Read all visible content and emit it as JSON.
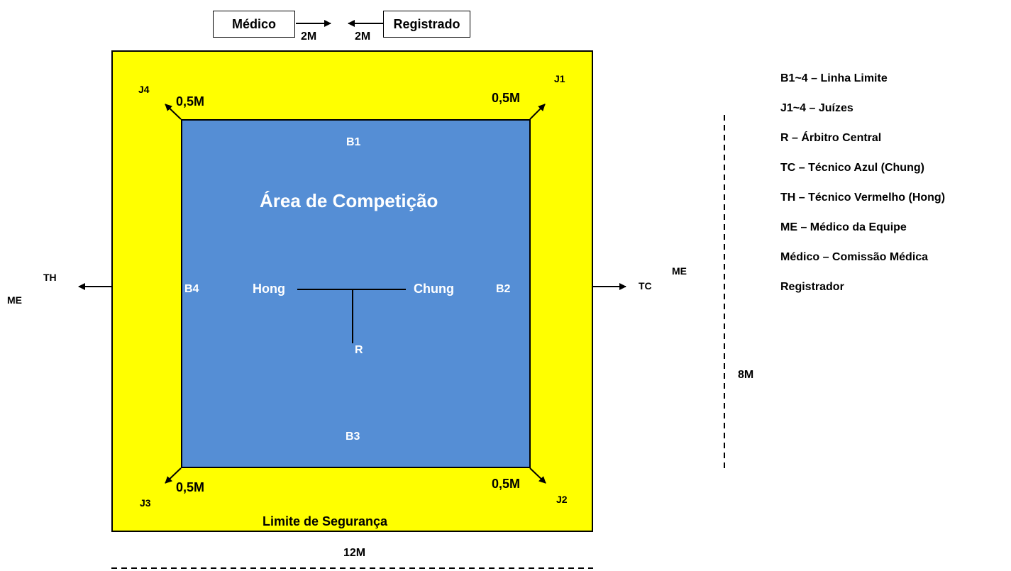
{
  "top": {
    "medico_label": "Médico",
    "registrado_label": "Registrado",
    "medico_distance": "2M",
    "registrado_distance": "2M"
  },
  "corners": {
    "j1": "J1",
    "j2": "J2",
    "j3": "J3",
    "j4": "J4",
    "d_top_left": "0,5M",
    "d_top_right": "0,5M",
    "d_bottom_left": "0,5M",
    "d_bottom_right": "0,5M"
  },
  "arena": {
    "title": "Área de Competição",
    "b1": "B1",
    "b2": "B2",
    "b3": "B3",
    "b4": "B4",
    "hong": "Hong",
    "chung": "Chung",
    "referee": "R"
  },
  "sides": {
    "left_th": "TH",
    "left_me": "ME",
    "right_tc": "TC",
    "right_me": "ME"
  },
  "safety_label": "Limite de Segurança",
  "dimensions": {
    "width": "12M",
    "height": "8M"
  },
  "legend": [
    "B1~4 – Linha Limite",
    "J1~4 – Juízes",
    "R – Árbitro Central",
    "TC – Técnico Azul (Chung)",
    "TH – Técnico Vermelho (Hong)",
    "ME – Médico da Equipe",
    "Médico – Comissão Médica",
    "Registrador"
  ],
  "colors": {
    "safety_area": "#ffff00",
    "competition_area": "#558ed5",
    "arena_text": "#ffffff"
  }
}
